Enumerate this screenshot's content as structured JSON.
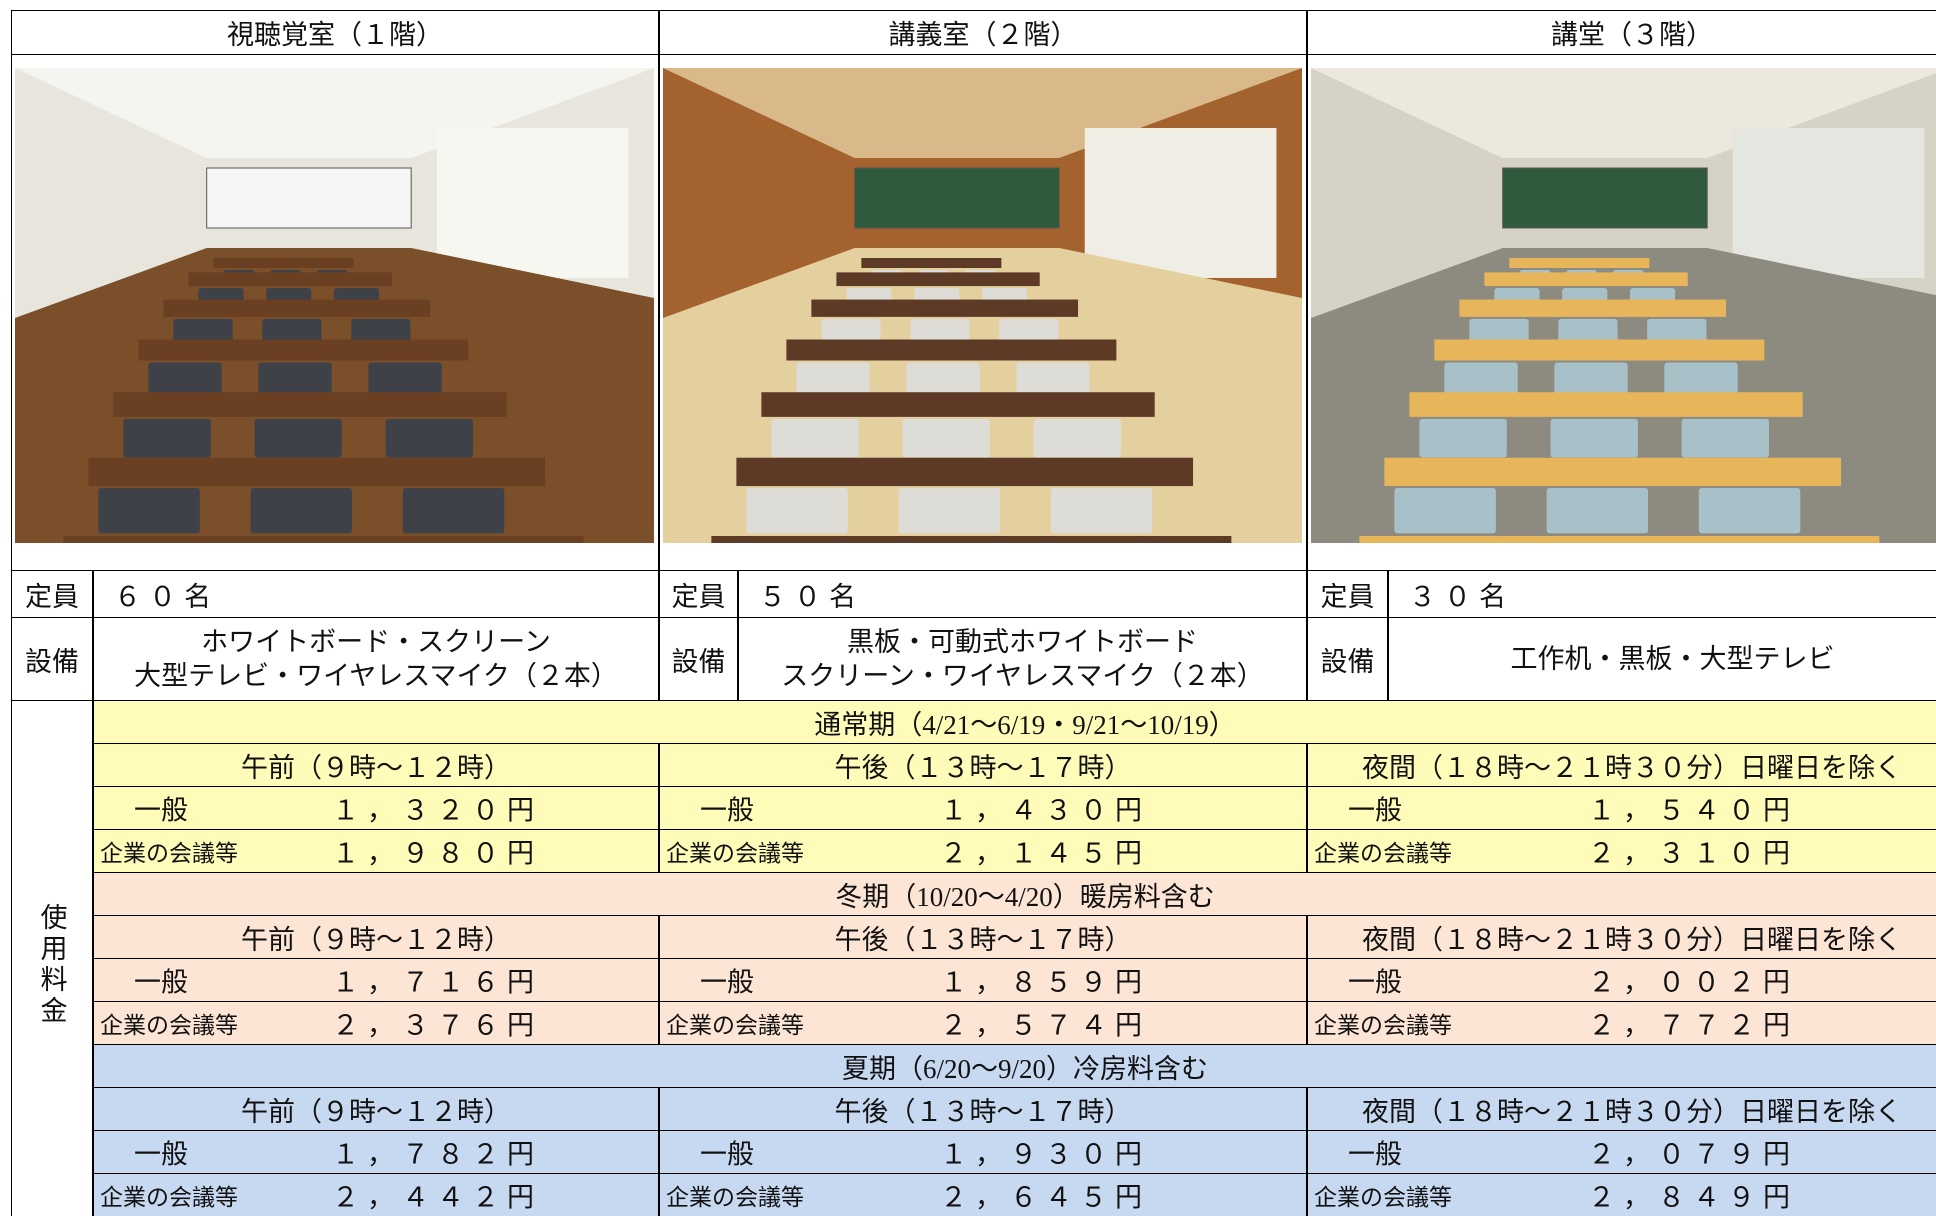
{
  "rooms": [
    {
      "name": "視聴覚室（１階）",
      "capacity_label": "定員",
      "capacity": "６０名",
      "equipment_label": "設備",
      "equipment": [
        "ホワイトボード・スクリーン",
        "大型テレビ・ワイヤレスマイク（２本）"
      ]
    },
    {
      "name": "講義室（２階）",
      "capacity_label": "定員",
      "capacity": "５０名",
      "equipment_label": "設備",
      "equipment": [
        "黒板・可動式ホワイトボード",
        "スクリーン・ワイヤレスマイク（２本）"
      ]
    },
    {
      "name": "講堂（３階）",
      "capacity_label": "定員",
      "capacity": "３０名",
      "equipment_label": "設備",
      "equipment": [
        "工作机・黒板・大型テレビ"
      ]
    }
  ],
  "fees": {
    "label": "使用料金",
    "seasons": [
      {
        "name": "通常期（4/21～6/19・9/21～10/19）",
        "periods": [
          "午前（９時～１２時）",
          "午後（１３時～１７時）",
          "夜間（１８時～２１時３０分）日曜日を除く"
        ],
        "rates": [
          {
            "cells": [
              {
                "category": "一般",
                "price": "１，３２０円"
              },
              {
                "category": "一般",
                "price": "１，４３０円"
              },
              {
                "category": "一般",
                "price": "１，５４０円"
              }
            ]
          },
          {
            "cells": [
              {
                "category": "企業の会議等",
                "price": "１，９８０円"
              },
              {
                "category": "企業の会議等",
                "price": "２，１４５円"
              },
              {
                "category": "企業の会議等",
                "price": "２，３１０円"
              }
            ]
          }
        ]
      },
      {
        "name": "冬期（10/20～4/20）暖房料含む",
        "periods": [
          "午前（９時～１２時）",
          "午後（１３時～１７時）",
          "夜間（１８時～２１時３０分）日曜日を除く"
        ],
        "rates": [
          {
            "cells": [
              {
                "category": "一般",
                "price": "１，７１６円"
              },
              {
                "category": "一般",
                "price": "１，８５９円"
              },
              {
                "category": "一般",
                "price": "２，００２円"
              }
            ]
          },
          {
            "cells": [
              {
                "category": "企業の会議等",
                "price": "２，３７６円"
              },
              {
                "category": "企業の会議等",
                "price": "２，５７４円"
              },
              {
                "category": "企業の会議等",
                "price": "２，７７２円"
              }
            ]
          }
        ]
      },
      {
        "name": "夏期（6/20～9/20）冷房料含む",
        "periods": [
          "午前（９時～１２時）",
          "午後（１３時～１７時）",
          "夜間（１８時～２１時３０分）日曜日を除く"
        ],
        "rates": [
          {
            "cells": [
              {
                "category": "一般",
                "price": "１，７８２円"
              },
              {
                "category": "一般",
                "price": "１，９３０円"
              },
              {
                "category": "一般",
                "price": "２，０７９円"
              }
            ]
          },
          {
            "cells": [
              {
                "category": "企業の会議等",
                "price": "２，４４２円"
              },
              {
                "category": "企業の会議等",
                "price": "２，６４５円"
              },
              {
                "category": "企業の会議等",
                "price": "２，８４９円"
              }
            ]
          }
        ]
      }
    ]
  }
}
